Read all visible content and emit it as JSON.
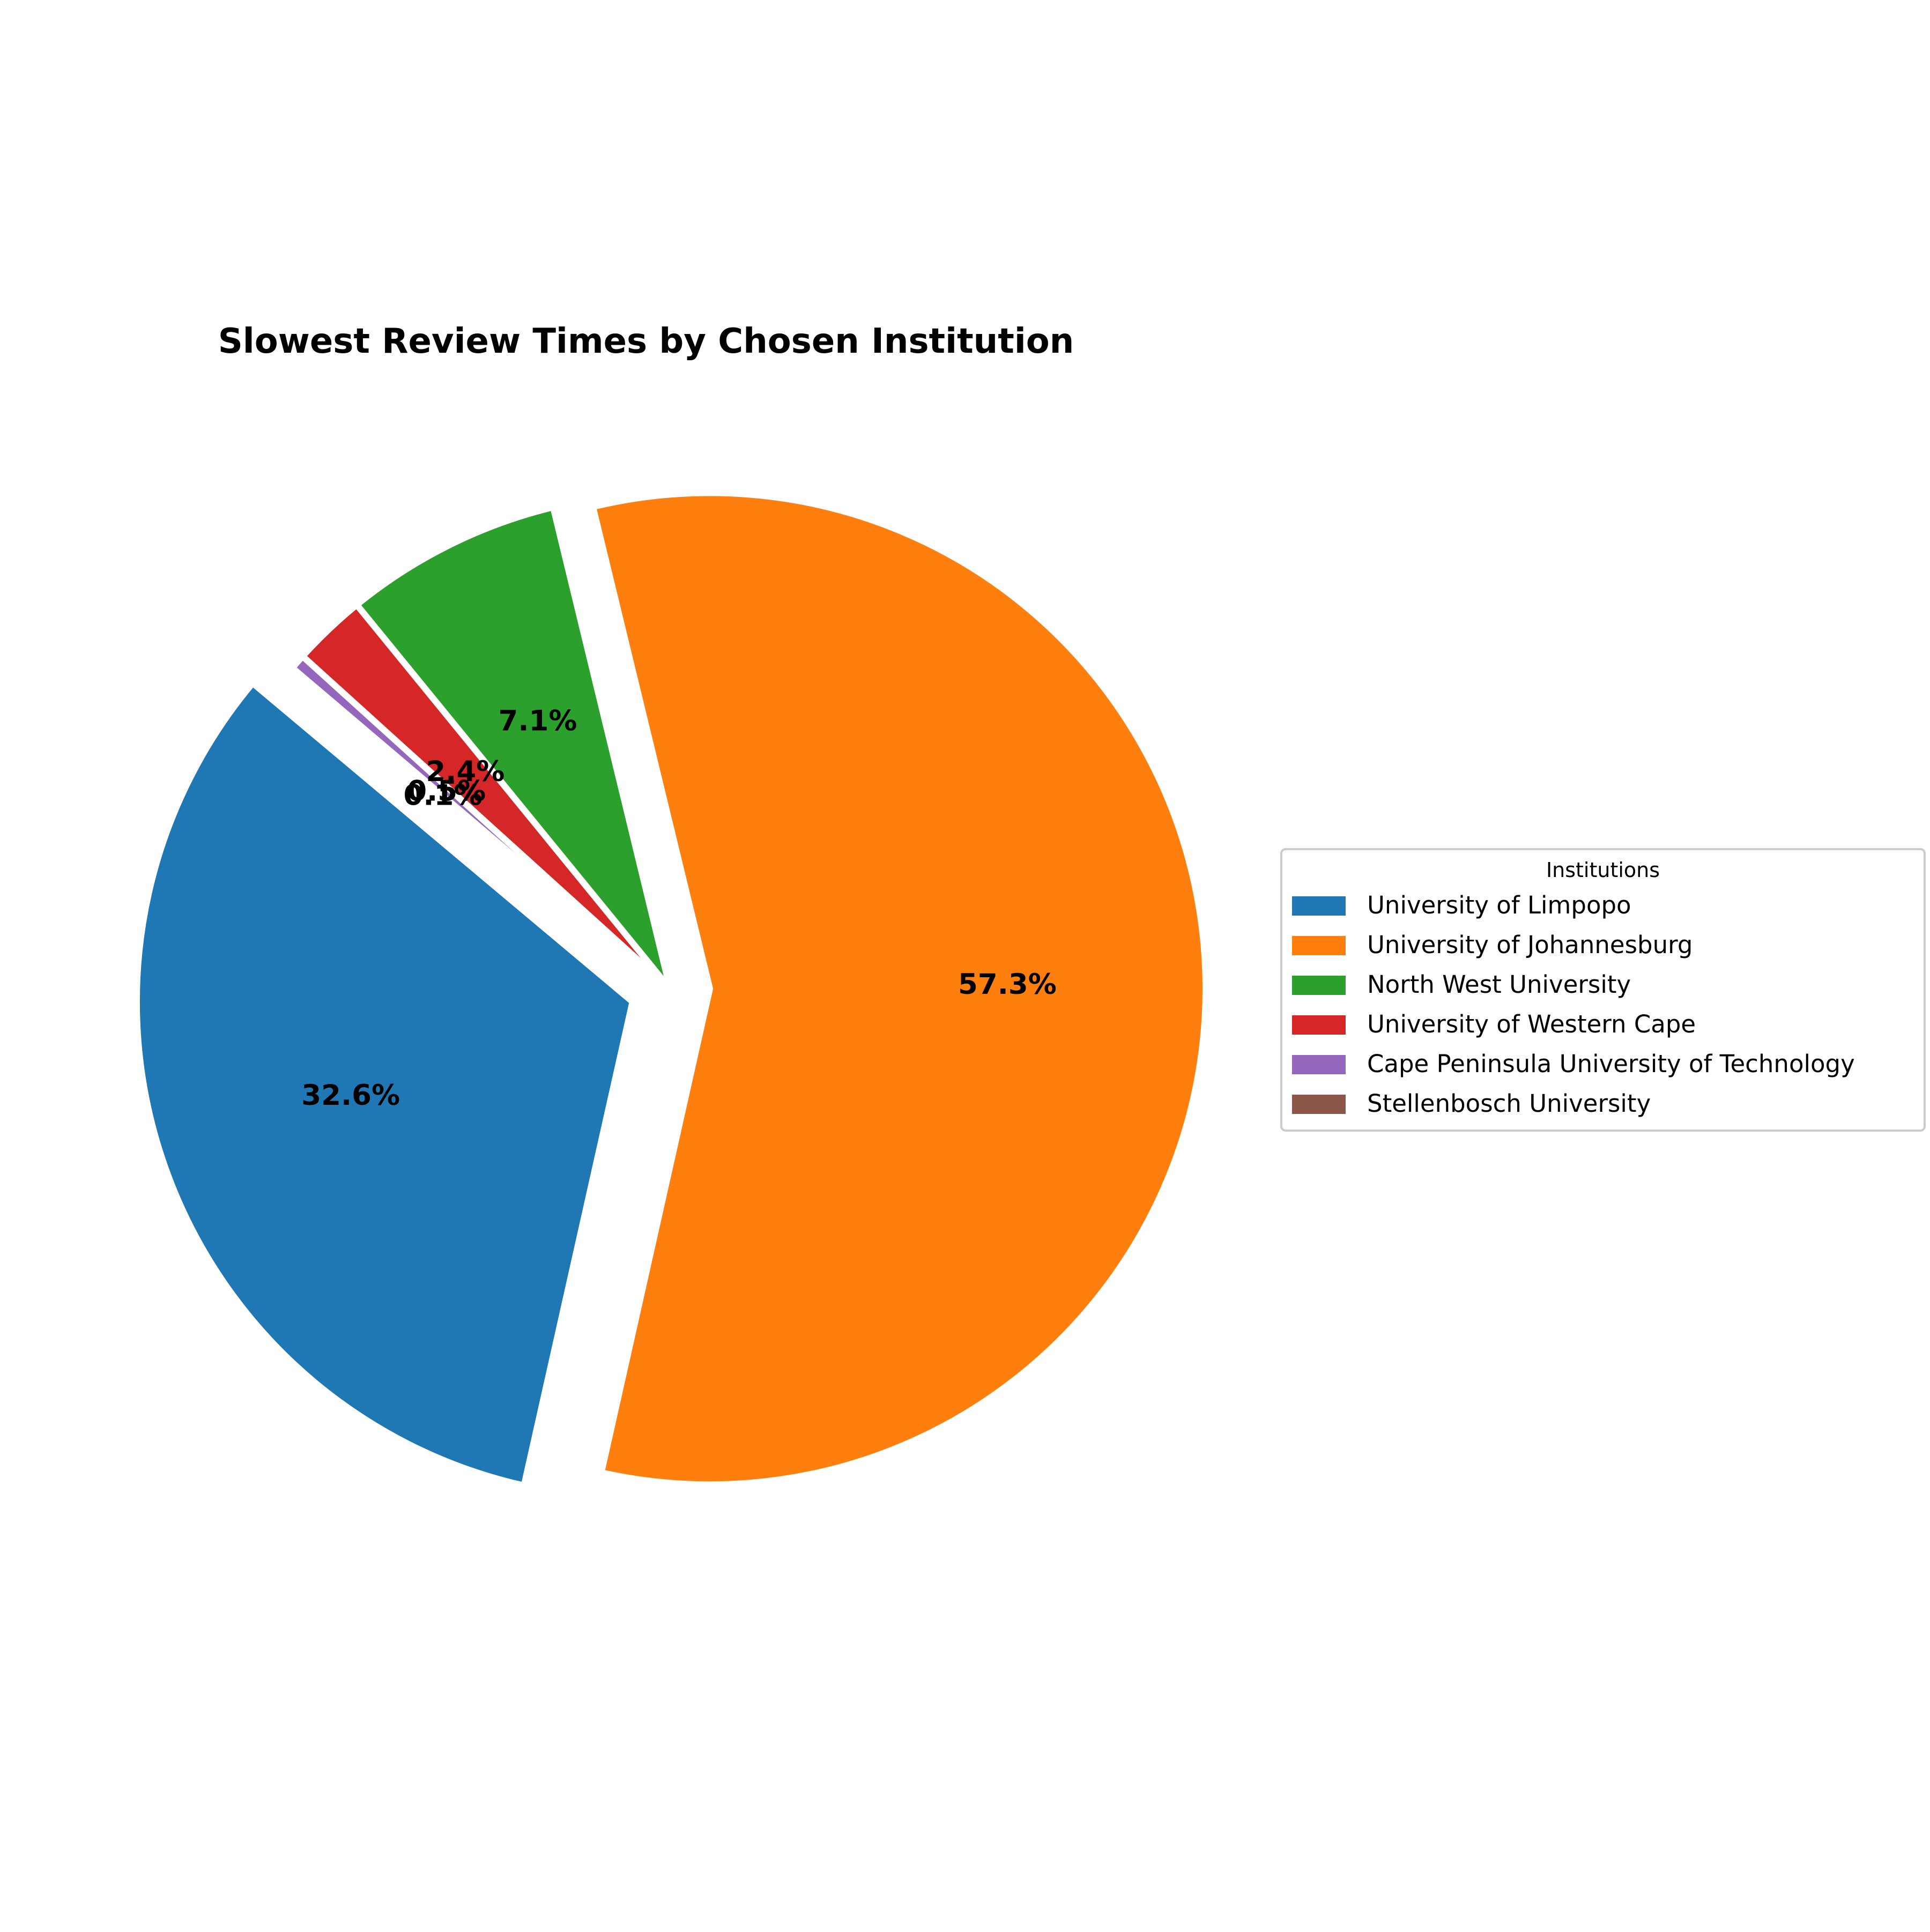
{
  "chart_data": {
    "type": "pie",
    "title": "Slowest Review Times by Chosen Institution",
    "legend_title": "Institutions",
    "legend_position": "right",
    "slices": [
      {
        "name": "University of Limpopo",
        "percent": 32.6,
        "label": "32.6%",
        "color": "#1f77b4",
        "exploded": true
      },
      {
        "name": "University of Johannesburg",
        "percent": 57.3,
        "label": "57.3%",
        "color": "#ff7f0e",
        "exploded": true
      },
      {
        "name": "North West University",
        "percent": 7.1,
        "label": "7.1%",
        "color": "#2ca02c",
        "exploded": false
      },
      {
        "name": "University of Western Cape",
        "percent": 2.4,
        "label": "2.4%",
        "color": "#d62728",
        "exploded": false
      },
      {
        "name": "Cape Peninsula University of Technology",
        "percent": 0.5,
        "label": "0.5%",
        "color": "#9467bd",
        "exploded": false
      },
      {
        "name": "Stellenbosch University",
        "percent": 0.1,
        "label": "0.1%",
        "color": "#8c564b",
        "exploded": false
      }
    ]
  }
}
